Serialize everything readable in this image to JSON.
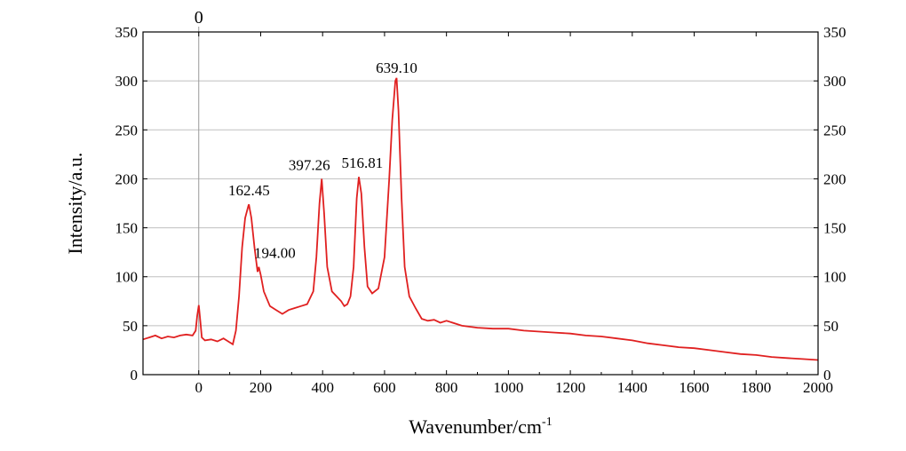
{
  "chart_data": {
    "type": "line",
    "title": "",
    "xlabel": "Wavenumber/cm",
    "xlabel_superscript": "-1",
    "ylabel": "Intensity/a.u.",
    "xlim": [
      -180,
      2000
    ],
    "ylim": [
      0,
      350
    ],
    "x_ticks": [
      "0",
      "200",
      "400",
      "600",
      "800",
      "1000",
      "1200",
      "1400",
      "1600",
      "1800",
      "2000"
    ],
    "y_ticks": [
      "0",
      "50",
      "100",
      "150",
      "200",
      "250",
      "300",
      "350"
    ],
    "grid": "horizontal",
    "right_axis_mirrored": true,
    "series_color": "#e02020",
    "reference_line": {
      "x": 0,
      "label": "0"
    },
    "annotations": [
      {
        "text": "162.45",
        "x": 162.45,
        "y": 174
      },
      {
        "text": "194.00",
        "x": 194.0,
        "y": 110
      },
      {
        "text": "397.26",
        "x": 397.26,
        "y": 200
      },
      {
        "text": "516.81",
        "x": 516.81,
        "y": 202
      },
      {
        "text": "639.10",
        "x": 639.1,
        "y": 303
      }
    ],
    "series": [
      {
        "x": [
          -180,
          -160,
          -140,
          -120,
          -100,
          -80,
          -60,
          -40,
          -20,
          -10,
          -5,
          0,
          5,
          10,
          20,
          40,
          60,
          80,
          100,
          110,
          120,
          130,
          140,
          150,
          160,
          162,
          170,
          180,
          190,
          194,
          200,
          210,
          230,
          250,
          270,
          290,
          310,
          330,
          350,
          370,
          380,
          390,
          397,
          405,
          415,
          430,
          445,
          460,
          470,
          480,
          490,
          500,
          510,
          517,
          525,
          535,
          545,
          560,
          580,
          600,
          615,
          625,
          635,
          639,
          645,
          655,
          665,
          680,
          700,
          720,
          740,
          760,
          780,
          800,
          850,
          900,
          950,
          1000,
          1050,
          1100,
          1150,
          1200,
          1250,
          1300,
          1350,
          1400,
          1450,
          1500,
          1550,
          1600,
          1650,
          1700,
          1750,
          1800,
          1850,
          1900,
          1950,
          2000
        ],
        "values": [
          36,
          38,
          40,
          37,
          39,
          38,
          40,
          41,
          40,
          45,
          60,
          71,
          55,
          38,
          35,
          36,
          34,
          37,
          33,
          31,
          45,
          80,
          130,
          160,
          172,
          174,
          160,
          130,
          105,
          110,
          102,
          85,
          70,
          66,
          62,
          66,
          68,
          70,
          72,
          85,
          120,
          175,
          200,
          165,
          110,
          85,
          80,
          75,
          70,
          72,
          80,
          110,
          180,
          202,
          185,
          130,
          90,
          83,
          88,
          120,
          200,
          260,
          300,
          303,
          270,
          180,
          110,
          80,
          68,
          57,
          55,
          56,
          53,
          55,
          50,
          48,
          47,
          47,
          45,
          44,
          43,
          42,
          40,
          39,
          37,
          35,
          32,
          30,
          28,
          27,
          25,
          23,
          21,
          20,
          18,
          17,
          16,
          15
        ]
      }
    ]
  }
}
